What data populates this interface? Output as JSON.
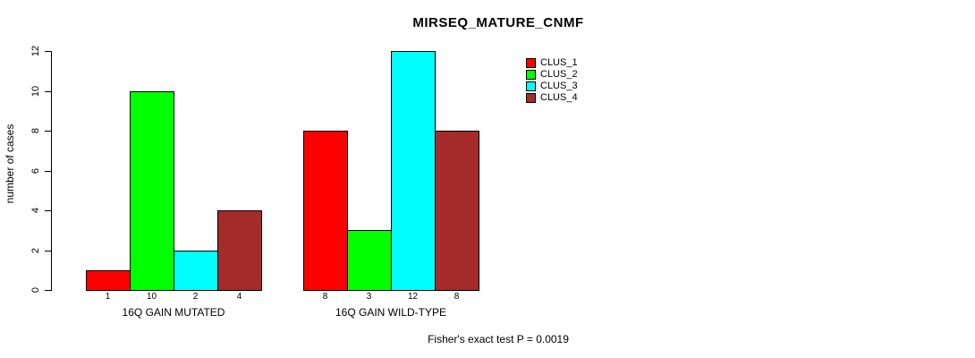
{
  "chart_data": {
    "type": "bar",
    "title": "MIRSEQ_MATURE_CNMF",
    "ylabel": "number of cases",
    "ylim": [
      0,
      12
    ],
    "yticks": [
      0,
      2,
      4,
      6,
      8,
      10,
      12
    ],
    "categories": [
      "16Q GAIN MUTATED",
      "16Q GAIN WILD-TYPE"
    ],
    "groups": [
      {
        "label": "16Q GAIN MUTATED",
        "values": [
          1,
          10,
          2,
          4
        ]
      },
      {
        "label": "16Q GAIN WILD-TYPE",
        "values": [
          8,
          3,
          12,
          8
        ]
      }
    ],
    "series": [
      {
        "name": "CLUS_1",
        "color": "#FF0000",
        "values": [
          1,
          8
        ]
      },
      {
        "name": "CLUS_2",
        "color": "#00FF00",
        "values": [
          10,
          3
        ]
      },
      {
        "name": "CLUS_3",
        "color": "#00FFFF",
        "values": [
          2,
          12
        ]
      },
      {
        "name": "CLUS_4",
        "color": "#A52A2A",
        "values": [
          4,
          8
        ]
      }
    ],
    "legend": [
      {
        "label": "CLUS_1",
        "color": "#FF0000"
      },
      {
        "label": "CLUS_2",
        "color": "#00FF00"
      },
      {
        "label": "CLUS_3",
        "color": "#00FFFF"
      },
      {
        "label": "CLUS_4",
        "color": "#A52A2A"
      }
    ],
    "legend_position": "top-right",
    "grid": false,
    "bar_value_labels_shown": true,
    "footnote": "Fisher's exact test P = 0.0019",
    "axis_color": "#000000",
    "background_color": "#FFFFFF"
  }
}
